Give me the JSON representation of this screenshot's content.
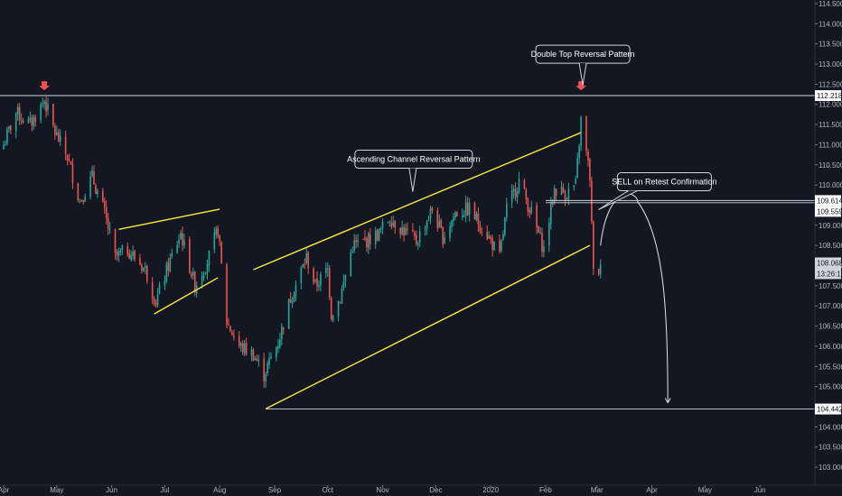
{
  "chart_data": {
    "type": "candlestick",
    "symbol": "USDJPY",
    "timeframe": "daily",
    "x_start": "2019-04-01",
    "x_end": "2020-06-30",
    "ylim": [
      102.8,
      114.7
    ],
    "grid": false,
    "y_ticks": [
      "103.000",
      "103.500",
      "104.000",
      "104.500",
      "105.000",
      "105.500",
      "106.000",
      "106.500",
      "107.000",
      "107.500",
      "108.000",
      "108.500",
      "109.000",
      "109.500",
      "110.000",
      "110.500",
      "111.000",
      "111.500",
      "112.000",
      "112.500",
      "113.000",
      "113.500",
      "114.000",
      "114.500"
    ],
    "x_ticks": [
      {
        "date": "2019-04-01",
        "label": "Apr"
      },
      {
        "date": "2019-05-01",
        "label": "May"
      },
      {
        "date": "2019-06-01",
        "label": "Jun"
      },
      {
        "date": "2019-07-01",
        "label": "Jul"
      },
      {
        "date": "2019-08-01",
        "label": "Aug"
      },
      {
        "date": "2019-09-01",
        "label": "Sep"
      },
      {
        "date": "2019-10-01",
        "label": "Oct"
      },
      {
        "date": "2019-11-01",
        "label": "Nov"
      },
      {
        "date": "2019-12-01",
        "label": "Dec"
      },
      {
        "date": "2020-01-01",
        "label": "2020"
      },
      {
        "date": "2020-02-01",
        "label": "Feb"
      },
      {
        "date": "2020-03-01",
        "label": "Mar"
      },
      {
        "date": "2020-04-01",
        "label": "Apr"
      },
      {
        "date": "2020-05-01",
        "label": "May"
      },
      {
        "date": "2020-06-01",
        "label": "Jun"
      }
    ],
    "price_path": [
      [
        "2019-04-01",
        111.0
      ],
      [
        "2019-04-08",
        111.8
      ],
      [
        "2019-04-16",
        111.5
      ],
      [
        "2019-04-24",
        112.1
      ],
      [
        "2019-04-30",
        111.3
      ],
      [
        "2019-05-07",
        110.7
      ],
      [
        "2019-05-14",
        109.6
      ],
      [
        "2019-05-21",
        110.2
      ],
      [
        "2019-05-28",
        109.3
      ],
      [
        "2019-06-03",
        108.2
      ],
      [
        "2019-06-10",
        108.4
      ],
      [
        "2019-06-20",
        107.9
      ],
      [
        "2019-06-26",
        107.1
      ],
      [
        "2019-07-03",
        108.0
      ],
      [
        "2019-07-10",
        108.8
      ],
      [
        "2019-07-18",
        107.5
      ],
      [
        "2019-07-25",
        108.1
      ],
      [
        "2019-07-31",
        108.9
      ],
      [
        "2019-08-05",
        106.6
      ],
      [
        "2019-08-12",
        106.0
      ],
      [
        "2019-08-20",
        105.8
      ],
      [
        "2019-08-26",
        105.3
      ],
      [
        "2019-09-03",
        106.1
      ],
      [
        "2019-09-10",
        107.2
      ],
      [
        "2019-09-19",
        108.2
      ],
      [
        "2019-09-24",
        107.5
      ],
      [
        "2019-10-01",
        107.9
      ],
      [
        "2019-10-03",
        106.8
      ],
      [
        "2019-10-08",
        107.2
      ],
      [
        "2019-10-15",
        108.5
      ],
      [
        "2019-10-22",
        108.6
      ],
      [
        "2019-10-30",
        108.8
      ],
      [
        "2019-11-05",
        109.2
      ],
      [
        "2019-11-12",
        108.9
      ],
      [
        "2019-11-20",
        108.6
      ],
      [
        "2019-11-29",
        109.4
      ],
      [
        "2019-12-05",
        108.7
      ],
      [
        "2019-12-12",
        109.3
      ],
      [
        "2019-12-20",
        109.4
      ],
      [
        "2019-12-31",
        108.7
      ],
      [
        "2020-01-06",
        108.2
      ],
      [
        "2020-01-10",
        109.4
      ],
      [
        "2020-01-17",
        110.1
      ],
      [
        "2020-01-24",
        109.3
      ],
      [
        "2020-01-31",
        108.4
      ],
      [
        "2020-02-06",
        109.9
      ],
      [
        "2020-02-13",
        109.8
      ],
      [
        "2020-02-18",
        110.0
      ],
      [
        "2020-02-21",
        111.6
      ],
      [
        "2020-02-24",
        110.8
      ],
      [
        "2020-02-26",
        110.2
      ],
      [
        "2020-02-28",
        107.8
      ],
      [
        "2020-03-03",
        107.9
      ]
    ],
    "candles": [],
    "horizontal_levels": [
      {
        "value": 112.218,
        "label": "112.218",
        "style": "solid"
      },
      {
        "value": 109.614,
        "label": "109.614",
        "style": "solid"
      },
      {
        "value": 109.559,
        "label": "109.559",
        "style": "solid"
      },
      {
        "value": 104.442,
        "label": "104.442",
        "style": "solid"
      }
    ],
    "current_price": {
      "value": 108.068,
      "label": "108.068",
      "countdown": "13:26:18",
      "color": "#ef5350"
    },
    "trendlines": [
      {
        "name": "wedge-upper",
        "color": "#ffeb3b",
        "from": [
          "2019-06-05",
          108.9
        ],
        "to": [
          "2019-08-01",
          109.4
        ]
      },
      {
        "name": "wedge-lower",
        "color": "#ffeb3b",
        "from": [
          "2019-06-25",
          106.8
        ],
        "to": [
          "2019-07-31",
          107.7
        ]
      },
      {
        "name": "channel-upper",
        "color": "#ffeb3b",
        "from": [
          "2019-08-20",
          107.9
        ],
        "to": [
          "2020-02-21",
          111.3
        ]
      },
      {
        "name": "channel-lower",
        "color": "#ffeb3b",
        "from": [
          "2019-08-27",
          104.45
        ],
        "to": [
          "2020-02-26",
          108.5
        ]
      }
    ],
    "annotations": [
      {
        "text": "Double Top Reversal Pattern",
        "anchor": [
          "2020-02-22",
          112.35
        ]
      },
      {
        "text": "Ascending Channel Reversal Pattern",
        "anchor": [
          "2019-11-18",
          109.7
        ]
      },
      {
        "text": "SELL on Retest Confirmation",
        "anchor": [
          "2020-03-10",
          109.7
        ]
      }
    ],
    "markers": [
      {
        "type": "arrow-down",
        "date": "2019-04-24",
        "value": 112.35,
        "color": "#ef5350"
      },
      {
        "type": "arrow-down",
        "date": "2020-02-21",
        "value": 112.35,
        "color": "#ef5350"
      }
    ],
    "colors": {
      "up": "#26a69a",
      "down": "#ef5350",
      "background": "#131722",
      "axis_text": "#b2b5be",
      "trendline": "#ffeb3b",
      "level": "#d1d4dc"
    }
  }
}
